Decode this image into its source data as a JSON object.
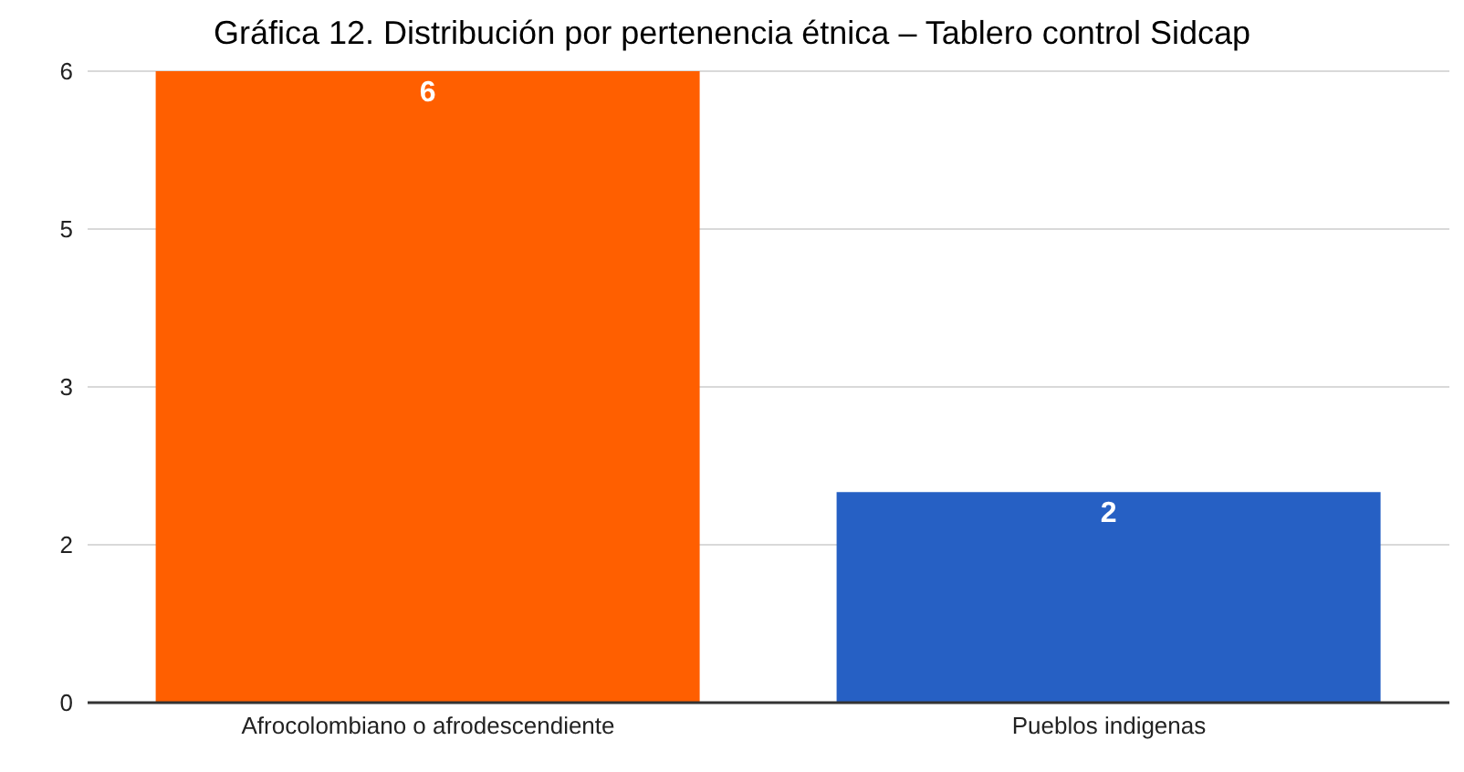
{
  "chart_data": {
    "type": "bar",
    "title": "Gráfica 12. Distribución por pertenencia étnica – Tablero control Sidcap",
    "categories": [
      "Afrocolombiano o afrodescendiente",
      "Pueblos indigenas"
    ],
    "values": [
      6,
      2
    ],
    "colors": [
      "#ff5f00",
      "#2660c4"
    ],
    "ylim": [
      0,
      6
    ],
    "yticks": [
      0,
      {
        "value": 1.5,
        "label": "2"
      },
      3,
      {
        "value": 4.5,
        "label": "5"
      },
      6
    ],
    "grid": "y",
    "data_labels": true
  }
}
